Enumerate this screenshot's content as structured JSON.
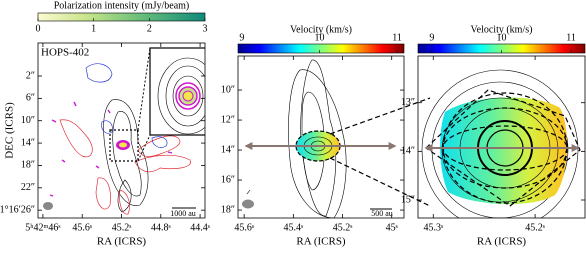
{
  "chart_data": [
    {
      "type": "map",
      "annotation": "HOPS-402",
      "scalebar": "1000 au",
      "xlabel": "RA (ICRS)",
      "ylabel": "DEC (ICRS)",
      "xlim": [
        46.05,
        44.35
      ],
      "xticks": [
        {
          "value": 46.0,
          "label": "5ʰ42ᵐ46ˢ"
        },
        {
          "value": 45.6,
          "label": "45.6ˢ"
        },
        {
          "value": 45.2,
          "label": "45.2ˢ"
        },
        {
          "value": 44.8,
          "label": "44.8ˢ"
        },
        {
          "value": 44.4,
          "label": "44.4ˢ"
        }
      ],
      "ylim": [
        27.4,
        -3.9
      ],
      "yticks": [
        {
          "value": 2,
          "label": "2″"
        },
        {
          "value": 6,
          "label": "6″"
        },
        {
          "value": 10,
          "label": "10″"
        },
        {
          "value": 14,
          "label": "14″"
        },
        {
          "value": 18,
          "label": "18″"
        },
        {
          "value": 22,
          "label": "22″"
        },
        {
          "value": 26,
          "label": "-1°16′26″"
        }
      ],
      "colorbar": {
        "label": "Polarization intensity (mJy/beam)",
        "lim": [
          0,
          3
        ],
        "ticks": [
          0,
          1,
          2,
          3
        ],
        "colormap": "cubehelix"
      }
    },
    {
      "type": "map",
      "scalebar": "500 au",
      "xlabel": "RA (ICRS)",
      "xlim": [
        45.625,
        44.95
      ],
      "xticks": [
        {
          "value": 45.6,
          "label": "45.6ˢ"
        },
        {
          "value": 45.4,
          "label": "45.4ˢ"
        },
        {
          "value": 45.2,
          "label": "45.2ˢ"
        },
        {
          "value": 45.0,
          "label": "45ˢ"
        }
      ],
      "ylim": [
        18.53,
        7.73
      ],
      "yticks": [
        {
          "value": 10,
          "label": "10″"
        },
        {
          "value": 12,
          "label": "12″"
        },
        {
          "value": 14,
          "label": "14″"
        },
        {
          "value": 16,
          "label": "16″"
        },
        {
          "value": 18,
          "label": "18″"
        }
      ],
      "colorbar": {
        "label": "Velocity (km/s)",
        "lim": [
          8.95,
          11.09
        ],
        "ticks": [
          9,
          10,
          11
        ],
        "colormap": "jet"
      }
    },
    {
      "type": "map",
      "xlabel": "RA (ICRS)",
      "xlim": [
        45.315,
        45.151
      ],
      "xticks": [
        {
          "value": 45.3,
          "label": "45.3ˢ"
        },
        {
          "value": 45.2,
          "label": "45.2ˢ"
        }
      ],
      "ylim": [
        15.37,
        12.04
      ],
      "yticks": [
        {
          "value": 13,
          "label": "13″"
        },
        {
          "value": 14,
          "label": "14″"
        },
        {
          "value": 15,
          "label": "15″"
        }
      ],
      "colorbar": {
        "label": "Velocity (km/s)",
        "lim": [
          8.8,
          11.2
        ],
        "ticks": [
          9,
          10,
          11
        ],
        "colormap": "jet"
      }
    }
  ]
}
